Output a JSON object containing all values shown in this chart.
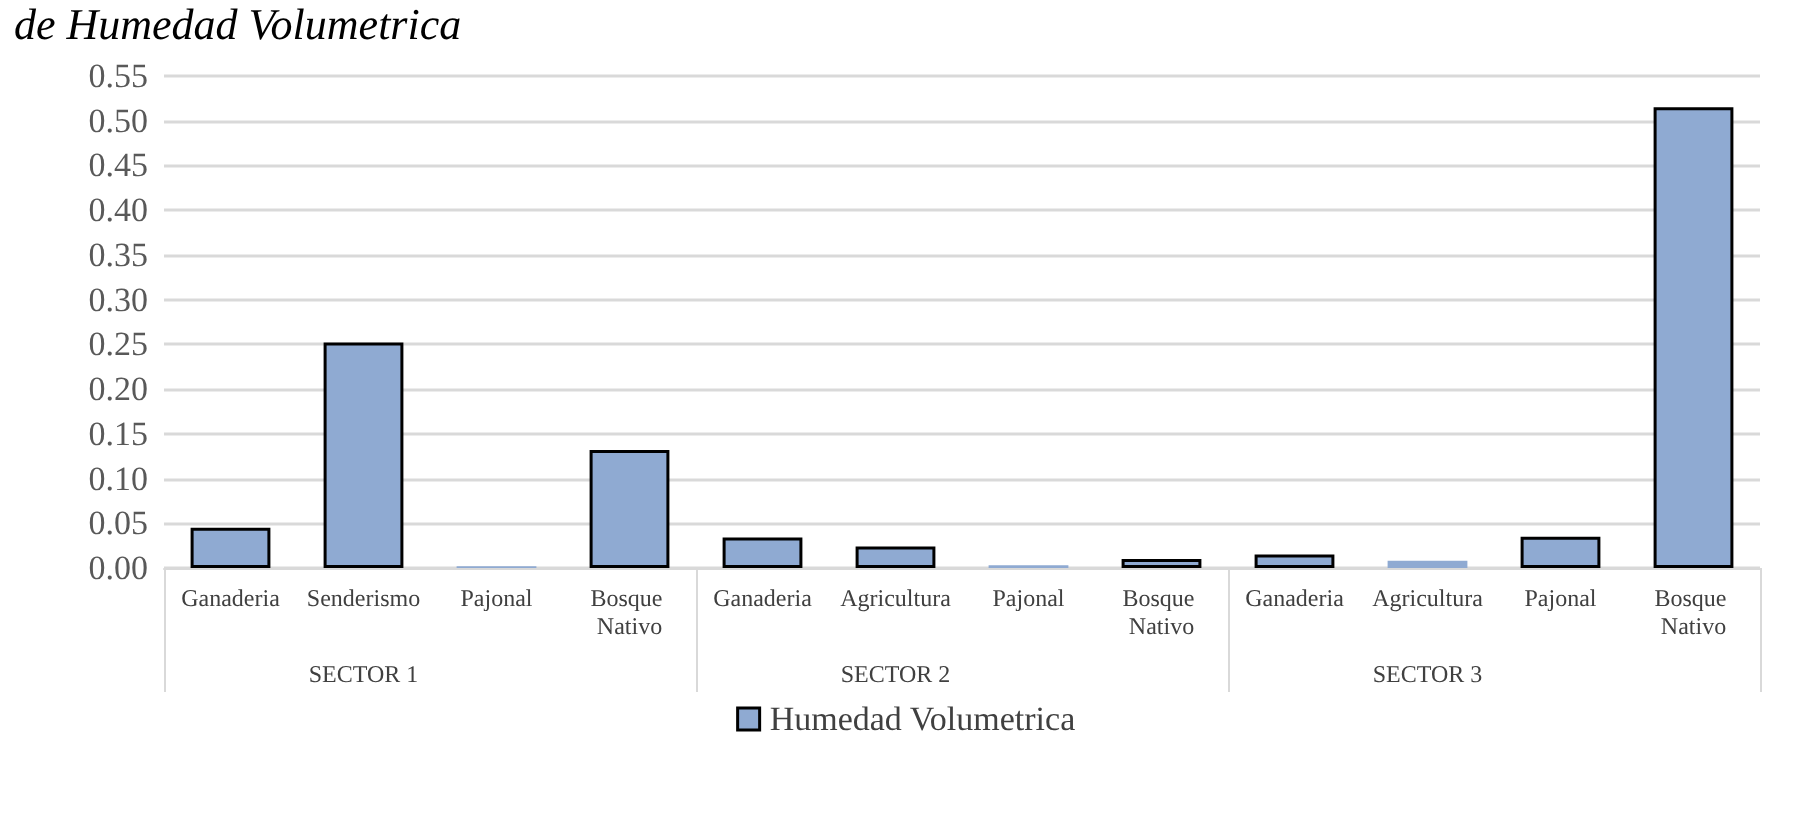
{
  "chart_data": {
    "type": "bar",
    "title": "de Humedad Volumetrica",
    "categories": [
      "Ganaderia",
      "Senderismo",
      "Pajonal",
      "Bosque Nativo",
      "Ganaderia",
      "Agricultura",
      "Pajonal",
      "Bosque Nativo",
      "Ganaderia",
      "Agricultura",
      "Pajonal",
      "Bosque Nativo"
    ],
    "series": [
      {
        "name": "Humedad Volumetrica",
        "color": "#8faad2",
        "values": [
          0.045,
          0.252,
          0.002,
          0.132,
          0.034,
          0.024,
          0.003,
          0.01,
          0.015,
          0.008,
          0.035,
          0.515
        ]
      }
    ],
    "annotations": [
      "SECTOR 1",
      "SECTOR 2",
      "SECTOR 3"
    ],
    "ylim": [
      0,
      0.55
    ],
    "yticks": [
      {
        "value": 0,
        "label": "0.00"
      },
      0.05,
      {
        "value": 0.1,
        "label": "0.10"
      },
      0.15,
      {
        "value": 0.2,
        "label": "0.20"
      },
      0.25,
      {
        "value": 0.3,
        "label": "0.30"
      },
      0.35,
      {
        "value": 0.4,
        "label": "0.40"
      },
      0.45,
      {
        "value": 0.5,
        "label": "0.50"
      },
      0.55
    ],
    "grid": "y",
    "legend": "bottom"
  }
}
